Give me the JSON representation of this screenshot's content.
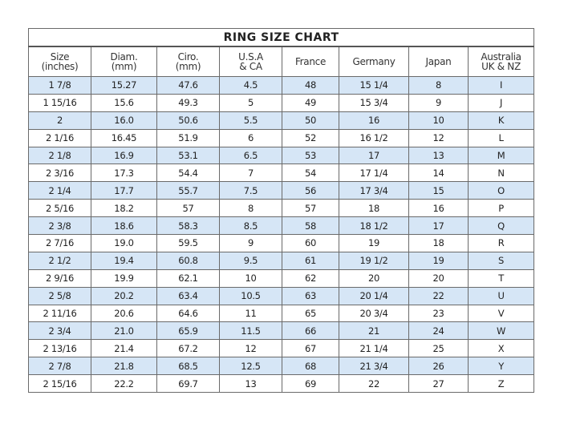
{
  "title": "RING  SIZE  CHART",
  "headers": [
    [
      "Size",
      "(inches)"
    ],
    [
      "Diam.",
      "(mm)"
    ],
    [
      "Ciro.",
      "(mm)"
    ],
    [
      "U.S.A",
      "& CA"
    ],
    [
      "France",
      ""
    ],
    [
      "Germany",
      ""
    ],
    [
      "Japan",
      ""
    ],
    [
      "Australia",
      "UK & NZ"
    ]
  ],
  "row_colors": {
    "alternate": "#d6e6f6",
    "plain": "#ffffff"
  },
  "rows": [
    [
      "1 7/8",
      "15.27",
      "47.6",
      "4.5",
      "48",
      "15 1/4",
      "8",
      "I"
    ],
    [
      "1 15/16",
      "15.6",
      "49.3",
      "5",
      "49",
      "15 3/4",
      "9",
      "J"
    ],
    [
      "2",
      "16.0",
      "50.6",
      "5.5",
      "50",
      "16",
      "10",
      "K"
    ],
    [
      "2 1/16",
      "16.45",
      "51.9",
      "6",
      "52",
      "16 1/2",
      "12",
      "L"
    ],
    [
      "2 1/8",
      "16.9",
      "53.1",
      "6.5",
      "53",
      "17",
      "13",
      "M"
    ],
    [
      "2 3/16",
      "17.3",
      "54.4",
      "7",
      "54",
      "17 1/4",
      "14",
      "N"
    ],
    [
      "2 1/4",
      "17.7",
      "55.7",
      "7.5",
      "56",
      "17 3/4",
      "15",
      "O"
    ],
    [
      "2 5/16",
      "18.2",
      "57",
      "8",
      "57",
      "18",
      "16",
      "P"
    ],
    [
      "2 3/8",
      "18.6",
      "58.3",
      "8.5",
      "58",
      "18 1/2",
      "17",
      "Q"
    ],
    [
      "2 7/16",
      "19.0",
      "59.5",
      "9",
      "60",
      "19",
      "18",
      "R"
    ],
    [
      "2 1/2",
      "19.4",
      "60.8",
      "9.5",
      "61",
      "19 1/2",
      "19",
      "S"
    ],
    [
      "2 9/16",
      "19.9",
      "62.1",
      "10",
      "62",
      "20",
      "20",
      "T"
    ],
    [
      "2 5/8",
      "20.2",
      "63.4",
      "10.5",
      "63",
      "20 1/4",
      "22",
      "U"
    ],
    [
      "2 11/16",
      "20.6",
      "64.6",
      "11",
      "65",
      "20 3/4",
      "23",
      "V"
    ],
    [
      "2 3/4",
      "21.0",
      "65.9",
      "11.5",
      "66",
      "21",
      "24",
      "W"
    ],
    [
      "2 13/16",
      "21.4",
      "67.2",
      "12",
      "67",
      "21 1/4",
      "25",
      "X"
    ],
    [
      "2 7/8",
      "21.8",
      "68.5",
      "12.5",
      "68",
      "21 3/4",
      "26",
      "Y"
    ],
    [
      "2 15/16",
      "22.2",
      "69.7",
      "13",
      "69",
      "22",
      "27",
      "Z"
    ]
  ]
}
